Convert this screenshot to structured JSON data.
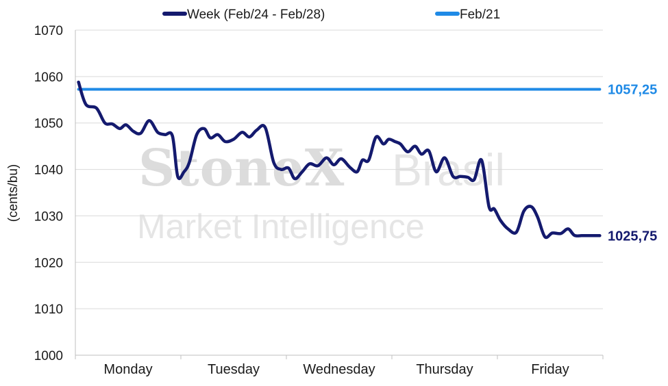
{
  "chart_data": {
    "type": "line",
    "ylabel": "(cents/bu)",
    "ylim": [
      1000,
      1070
    ],
    "yticks": [
      1000,
      1010,
      1020,
      1030,
      1040,
      1050,
      1060,
      1070
    ],
    "categories": [
      "Monday",
      "Tuesday",
      "Wednesday",
      "Thursday",
      "Friday"
    ],
    "grid": true,
    "legend_position": "top",
    "watermark": {
      "brand": "StoneX",
      "brand_suffix": "Brasil",
      "subtitle": "Market Intelligence"
    },
    "series": [
      {
        "name": "Week (Feb/24 - Feb/28)",
        "color": "#141a6e",
        "end_label": "1025,75",
        "x": [
          0.03,
          0.1,
          0.2,
          0.28,
          0.35,
          0.42,
          0.48,
          0.55,
          0.62,
          0.7,
          0.78,
          0.85,
          0.92,
          0.97,
          1.03,
          1.08,
          1.15,
          1.22,
          1.28,
          1.35,
          1.42,
          1.5,
          1.58,
          1.65,
          1.72,
          1.8,
          1.88,
          1.95,
          2.02,
          2.08,
          2.15,
          2.22,
          2.3,
          2.38,
          2.45,
          2.52,
          2.6,
          2.67,
          2.72,
          2.78,
          2.85,
          2.92,
          2.97,
          3.03,
          3.08,
          3.15,
          3.22,
          3.28,
          3.35,
          3.42,
          3.5,
          3.58,
          3.65,
          3.72,
          3.78,
          3.85,
          3.92,
          3.97,
          4.03,
          4.1,
          4.18,
          4.25,
          4.32,
          4.38,
          4.45,
          4.52,
          4.6,
          4.67,
          4.73,
          4.8,
          4.86,
          4.92,
          4.97
        ],
        "values": [
          1058.8,
          1054,
          1053.2,
          1050,
          1049.8,
          1048.8,
          1049.6,
          1048.2,
          1047.8,
          1050.5,
          1048,
          1047.5,
          1047.2,
          1038.5,
          1039.5,
          1041.5,
          1047.5,
          1048.8,
          1046.8,
          1047.5,
          1046,
          1046.5,
          1048,
          1047,
          1048.5,
          1049,
          1041.5,
          1040,
          1040.3,
          1038,
          1039.5,
          1041.2,
          1040.8,
          1042.5,
          1041,
          1042.3,
          1040.5,
          1039.5,
          1042,
          1042,
          1047,
          1045.5,
          1046.5,
          1046,
          1045.5,
          1043.8,
          1045,
          1043.3,
          1044,
          1039.5,
          1042.5,
          1038.5,
          1038.5,
          1038.3,
          1037.8,
          1042,
          1032,
          1031.5,
          1029,
          1027.2,
          1026.5,
          1031,
          1032,
          1029.8,
          1025.5,
          1026.3,
          1026.2,
          1027.2,
          1025.8,
          1025.75,
          1025.75,
          1025.75,
          1025.75
        ]
      },
      {
        "name": "Feb/21",
        "color": "#1f8ae6",
        "end_label": "1057,25",
        "x": [
          0.03,
          4.97
        ],
        "values": [
          1057.25,
          1057.25
        ]
      }
    ]
  }
}
